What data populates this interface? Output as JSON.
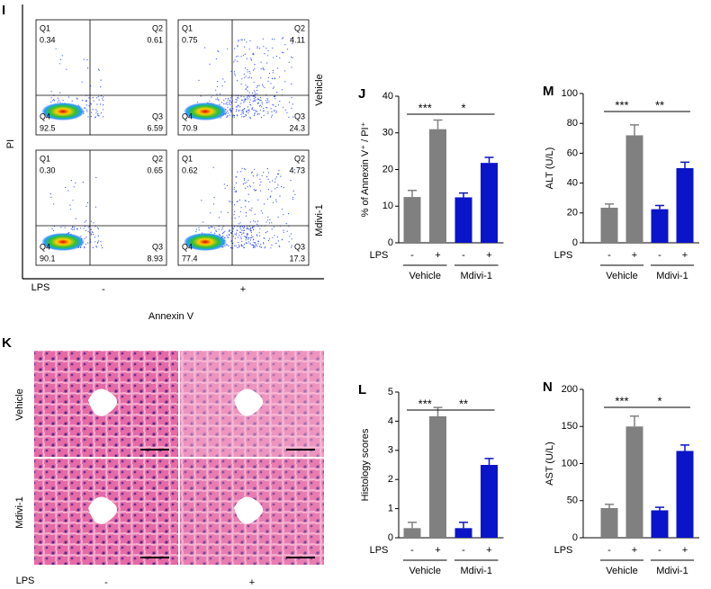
{
  "flow": {
    "panel": "I",
    "x_label": "Annexin V",
    "y_label": "PI",
    "row_labels": [
      "Vehicle",
      "Mdivi-1"
    ],
    "lps_label": "LPS",
    "lps_values": [
      "-",
      "+"
    ],
    "quadrant_names": [
      "Q1",
      "Q2",
      "Q3",
      "Q4"
    ],
    "plots": [
      [
        "0.34",
        "0.61",
        "6.59",
        "92.5"
      ],
      [
        "0.75",
        "4.11",
        "24.3",
        "70.9"
      ],
      [
        "0.30",
        "0.65",
        "8.93",
        "90.1"
      ],
      [
        "0.62",
        "4.73",
        "17.3",
        "77.4"
      ]
    ]
  },
  "histology": {
    "panel": "K",
    "row_labels": [
      "Vehicle",
      "Mdivi-1"
    ],
    "lps_label": "LPS",
    "lps_values": [
      "-",
      "+"
    ]
  },
  "chart_data": [
    {
      "type": "bar",
      "panel": "J",
      "y_label": "% of Annexin V⁺ / PI⁺",
      "lps_label": "LPS",
      "categories": [
        "-",
        "+",
        "-",
        "+"
      ],
      "groups": [
        "Vehicle",
        "Mdivi-1"
      ],
      "values": [
        12.5,
        31,
        12.4,
        21.8
      ],
      "errors": [
        1.8,
        2.5,
        1.2,
        1.5
      ],
      "colors": [
        "#808080",
        "#808080",
        "#0a14c8",
        "#0a14c8"
      ],
      "ylim": [
        0,
        40
      ],
      "yticks": [
        0,
        10,
        20,
        30,
        40
      ],
      "significance": [
        "***",
        "*"
      ]
    },
    {
      "type": "bar",
      "panel": "M",
      "y_label": "ALT (U/L)",
      "lps_label": "LPS",
      "categories": [
        "-",
        "+",
        "-",
        "+"
      ],
      "groups": [
        "Vehicle",
        "Mdivi-1"
      ],
      "values": [
        23.5,
        72,
        22.5,
        50
      ],
      "errors": [
        2.5,
        7,
        2.5,
        4
      ],
      "colors": [
        "#808080",
        "#808080",
        "#0a14c8",
        "#0a14c8"
      ],
      "ylim": [
        0,
        100
      ],
      "yticks": [
        0,
        20,
        40,
        60,
        80,
        100
      ],
      "significance": [
        "***",
        "**"
      ]
    },
    {
      "type": "bar",
      "panel": "L",
      "y_label": "Histology scores",
      "lps_label": "LPS",
      "categories": [
        "-",
        "+",
        "-",
        "+"
      ],
      "groups": [
        "Vehicle",
        "Mdivi-1"
      ],
      "values": [
        0.33,
        4.17,
        0.33,
        2.5
      ],
      "errors": [
        0.2,
        0.3,
        0.2,
        0.22
      ],
      "colors": [
        "#808080",
        "#808080",
        "#0a14c8",
        "#0a14c8"
      ],
      "ylim": [
        0,
        5
      ],
      "yticks": [
        0,
        1,
        2,
        3,
        4,
        5
      ],
      "significance": [
        "***",
        "**"
      ]
    },
    {
      "type": "bar",
      "panel": "N",
      "y_label": "AST (U/L)",
      "lps_label": "LPS",
      "categories": [
        "-",
        "+",
        "-",
        "+"
      ],
      "groups": [
        "Vehicle",
        "Mdivi-1"
      ],
      "values": [
        40,
        150,
        37,
        117
      ],
      "errors": [
        5,
        14,
        4,
        8
      ],
      "colors": [
        "#808080",
        "#808080",
        "#0a14c8",
        "#0a14c8"
      ],
      "ylim": [
        0,
        200
      ],
      "yticks": [
        0,
        50,
        100,
        150,
        200
      ],
      "significance": [
        "***",
        "*"
      ]
    }
  ]
}
